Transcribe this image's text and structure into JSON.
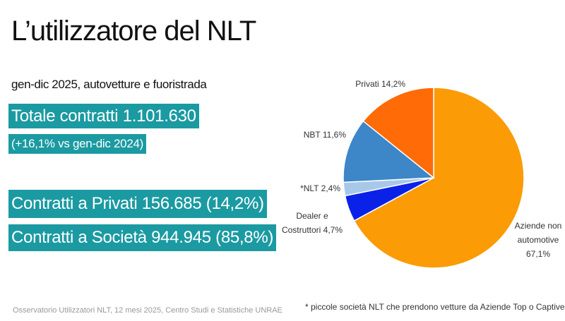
{
  "slide": {
    "title": "L’utilizzatore del NLT",
    "subtitle": "gen-dic 2025, autovetture e fuoristrada",
    "total": "Totale contratti 1.101.630",
    "growth": "(+16,1% vs  gen-dic 2024)",
    "private": "Contratti a Privati  156.685 (14,2%)",
    "companies": "Contratti a Società 944.945 (85,8%)",
    "source": "Osservatorio Utilizzatori NLT, 12 mesi 2025, Centro Studi e Statistiche UNRAE",
    "note": "* piccole società NLT che prendono vetture da Aziende Top o Captive"
  },
  "chart_data": {
    "type": "pie",
    "categories": [
      "Aziende non automotive",
      "Dealer e Costruttori",
      "*NLT",
      "NBT",
      "Privati"
    ],
    "values": [
      67.1,
      4.7,
      2.4,
      11.6,
      14.2
    ],
    "value_labels": [
      "67,1%",
      "4,7%",
      "2,4%",
      "11,6%",
      "14,2%"
    ],
    "colors": [
      "#fb9b06",
      "#0a22e8",
      "#a8c8ea",
      "#3d86c8",
      "#ff6b06"
    ]
  }
}
